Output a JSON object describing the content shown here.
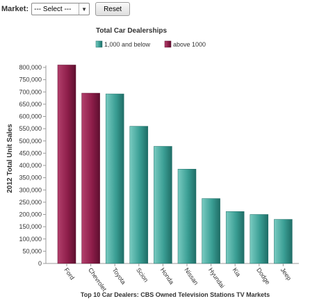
{
  "controls": {
    "market_label": "Market:",
    "market_select_value": "--- Select ---",
    "reset_label": "Reset"
  },
  "chart_data": {
    "type": "bar",
    "title": "Total Car Dealerships",
    "xlabel": "Top 10 Car Dealers: CBS Owned Television Stations TV Markets",
    "ylabel": "2012 Total Unit Sales",
    "ylim": [
      0,
      800000
    ],
    "yticks": [
      0,
      50000,
      100000,
      150000,
      200000,
      250000,
      300000,
      350000,
      400000,
      450000,
      500000,
      550000,
      600000,
      650000,
      700000,
      750000,
      800000
    ],
    "ytick_labels": [
      "0",
      "50,000",
      "100,000",
      "150,000",
      "200,000",
      "250,000",
      "300,000",
      "350,000",
      "400,000",
      "450,000",
      "500,000",
      "550,000",
      "600,000",
      "650,000",
      "700,000",
      "750,000",
      "800,000"
    ],
    "categories": [
      "Ford",
      "Chevrolet",
      "Toyota",
      "Scion",
      "Honda",
      "Nissan",
      "Hyundai",
      "Kia",
      "Dodge",
      "Jeep"
    ],
    "values": [
      810000,
      695000,
      692000,
      560000,
      478000,
      385000,
      265000,
      212000,
      200000,
      180000
    ],
    "groups": [
      "above 1000",
      "above 1000",
      "1,000 and below",
      "1,000 and below",
      "1,000 and below",
      "1,000 and below",
      "1,000 and below",
      "1,000 and below",
      "1,000 and below",
      "1,000 and below"
    ],
    "legend": [
      {
        "name": "1,000 and below",
        "color": "#3a9e94"
      },
      {
        "name": "above 1000",
        "color": "#8e1e4a"
      }
    ],
    "legend_position": "top",
    "grid": false
  }
}
